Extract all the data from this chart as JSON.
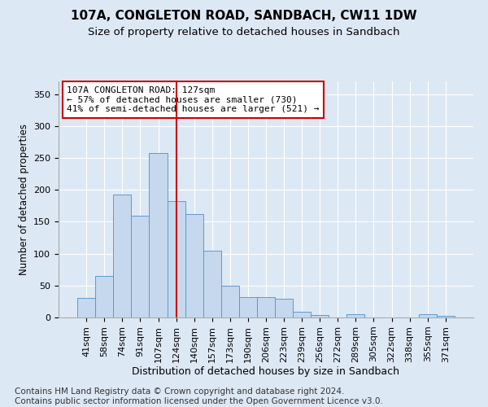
{
  "title": "107A, CONGLETON ROAD, SANDBACH, CW11 1DW",
  "subtitle": "Size of property relative to detached houses in Sandbach",
  "xlabel": "Distribution of detached houses by size in Sandbach",
  "ylabel": "Number of detached properties",
  "categories": [
    "41sqm",
    "58sqm",
    "74sqm",
    "91sqm",
    "107sqm",
    "124sqm",
    "140sqm",
    "157sqm",
    "173sqm",
    "190sqm",
    "206sqm",
    "223sqm",
    "239sqm",
    "256sqm",
    "272sqm",
    "289sqm",
    "305sqm",
    "322sqm",
    "338sqm",
    "355sqm",
    "371sqm"
  ],
  "values": [
    30,
    65,
    193,
    160,
    258,
    183,
    162,
    104,
    50,
    32,
    32,
    29,
    9,
    4,
    0,
    5,
    0,
    0,
    0,
    5,
    2
  ],
  "bar_color": "#c5d8ed",
  "bar_edge_color": "#5b9bd5",
  "vline_x": 5.0,
  "vline_color": "#cc0000",
  "annotation_text": "107A CONGLETON ROAD: 127sqm\n← 57% of detached houses are smaller (730)\n41% of semi-detached houses are larger (521) →",
  "annotation_box_color": "#ffffff",
  "annotation_box_edge_color": "#cc0000",
  "footer_text": "Contains HM Land Registry data © Crown copyright and database right 2024.\nContains public sector information licensed under the Open Government Licence v3.0.",
  "ylim": [
    0,
    370
  ],
  "background_color": "#dde8f5",
  "grid_color": "#ffffff",
  "title_fontsize": 11,
  "subtitle_fontsize": 9.5,
  "ylabel_fontsize": 8.5,
  "xlabel_fontsize": 9,
  "tick_fontsize": 8,
  "footer_fontsize": 7.5
}
